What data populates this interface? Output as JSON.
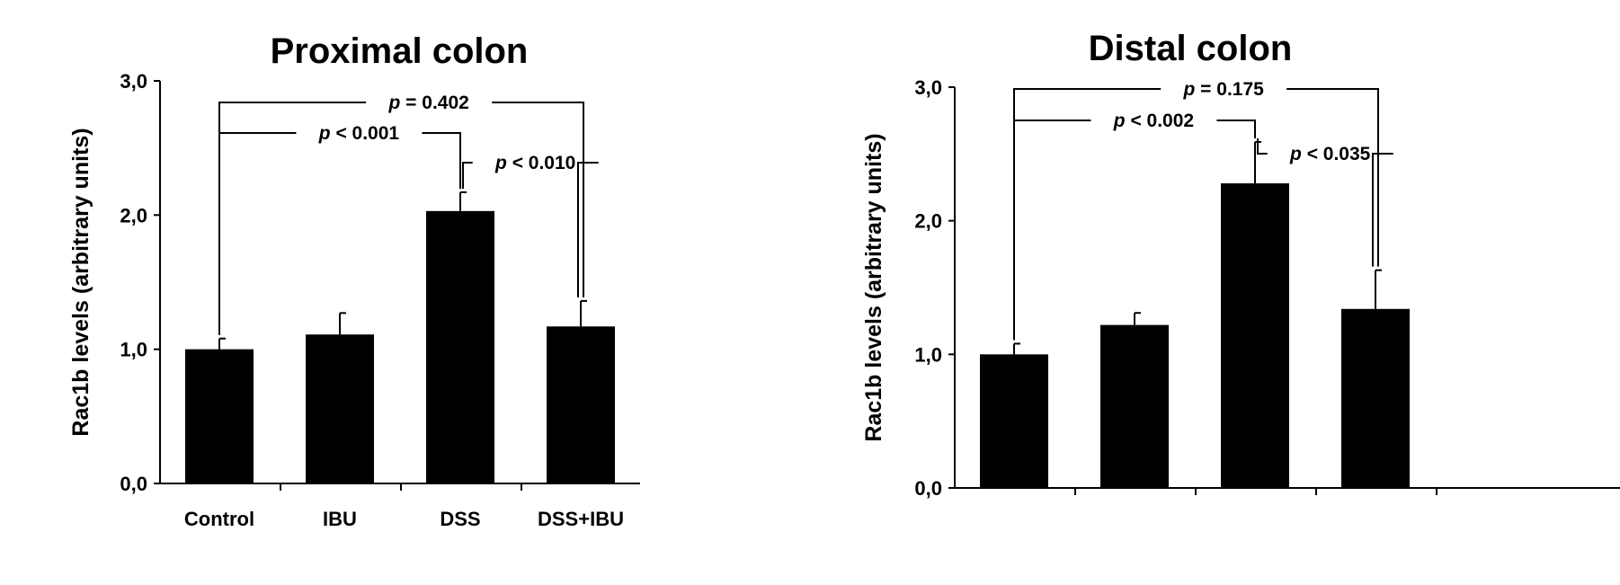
{
  "chart_data": [
    {
      "type": "bar",
      "title": "Proximal colon",
      "xlabel": "",
      "ylabel": "Rac1b levels (arbitrary units)",
      "ylim": [
        0,
        3
      ],
      "yticks": [
        "0,0",
        "1,0",
        "2,0",
        "3,0"
      ],
      "categories": [
        "Control",
        "IBU",
        "DSS",
        "DSS+IBU"
      ],
      "values": [
        1.0,
        1.11,
        2.03,
        1.17
      ],
      "errors": [
        0.08,
        0.16,
        0.14,
        0.19
      ],
      "bar_color": "#000000",
      "comparisons": [
        {
          "from": 0,
          "to": 3,
          "label": "p = 0.402"
        },
        {
          "from": 0,
          "to": 2,
          "label": "p < 0.001"
        },
        {
          "from": 2,
          "to": 3,
          "label": "p < 0.010"
        }
      ]
    },
    {
      "type": "bar",
      "title": "Distal colon",
      "xlabel": "",
      "ylabel": "Rac1b levels (arbitrary units)",
      "ylim": [
        0,
        3
      ],
      "yticks": [
        "0,0",
        "1,0",
        "2,0",
        "3,0"
      ],
      "categories": [
        "",
        "",
        "",
        ""
      ],
      "values": [
        1.0,
        1.22,
        2.28,
        1.34
      ],
      "errors": [
        0.08,
        0.09,
        0.31,
        0.29
      ],
      "bar_color": "#000000",
      "comparisons": [
        {
          "from": 0,
          "to": 3,
          "label": "p = 0.175"
        },
        {
          "from": 0,
          "to": 2,
          "label": "p < 0.002"
        },
        {
          "from": 2,
          "to": 3,
          "label": "p < 0.035"
        }
      ]
    }
  ]
}
